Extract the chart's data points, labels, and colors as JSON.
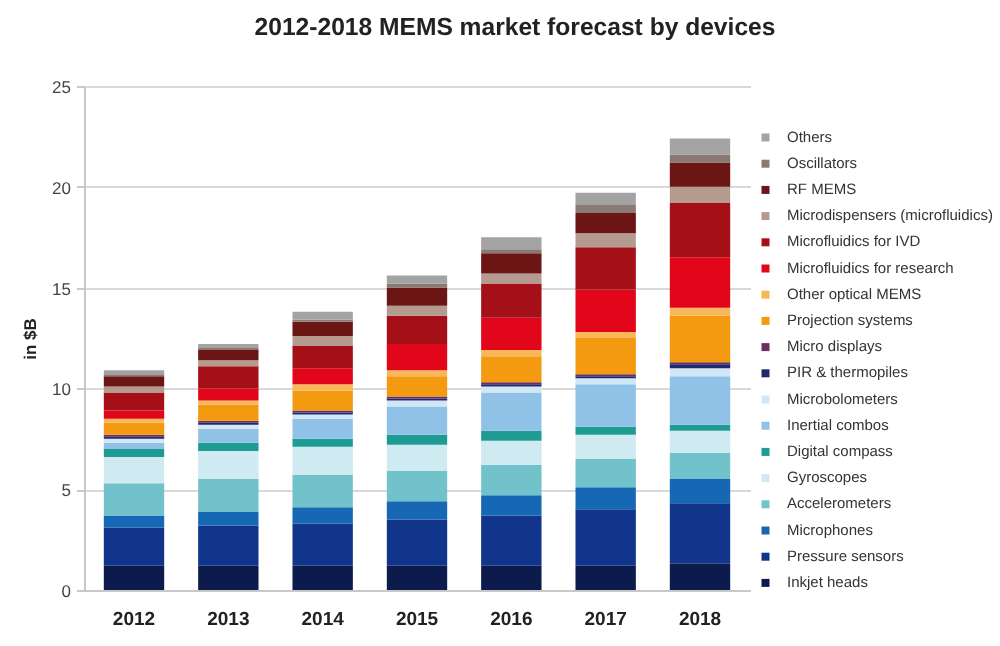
{
  "chart_data": {
    "type": "bar",
    "title": "2012-2018 MEMS market forecast by devices",
    "ylabel": "in $B",
    "categories": [
      "2012",
      "2013",
      "2014",
      "2015",
      "2016",
      "2017",
      "2018"
    ],
    "stacked": true,
    "ylim": [
      0,
      25
    ],
    "yticks": [
      0,
      5,
      10,
      15,
      20,
      25
    ],
    "grid": "y",
    "legend": "right",
    "series": [
      {
        "name": "Inkjet heads",
        "color": "#0d1b4c",
        "values": [
          1.2,
          1.2,
          1.2,
          1.2,
          1.2,
          1.2,
          1.3
        ]
      },
      {
        "name": "Pressure sensors",
        "color": "#10358a",
        "values": [
          1.9,
          2.0,
          2.1,
          2.3,
          2.5,
          2.8,
          3.0
        ]
      },
      {
        "name": "Microphones",
        "color": "#1668b4",
        "values": [
          0.6,
          0.7,
          0.8,
          0.9,
          1.0,
          1.1,
          1.2
        ]
      },
      {
        "name": "Accelerometers",
        "color": "#72c2cc",
        "values": [
          1.6,
          1.6,
          1.6,
          1.5,
          1.5,
          1.4,
          1.3
        ]
      },
      {
        "name": "Gyroscopes",
        "color": "#cfeaf0",
        "values": [
          1.3,
          1.4,
          1.4,
          1.3,
          1.2,
          1.2,
          1.1
        ]
      },
      {
        "name": "Digital compass",
        "color": "#1e9b93",
        "values": [
          0.4,
          0.4,
          0.4,
          0.5,
          0.5,
          0.4,
          0.3
        ]
      },
      {
        "name": "Inertial combos",
        "color": "#90c2e8",
        "values": [
          0.3,
          0.7,
          1.0,
          1.4,
          1.9,
          2.1,
          2.4
        ]
      },
      {
        "name": "Microbolometers",
        "color": "#d3e6f6",
        "values": [
          0.2,
          0.2,
          0.2,
          0.3,
          0.3,
          0.3,
          0.4
        ]
      },
      {
        "name": "PIR & thermopiles",
        "color": "#1c2a6e",
        "values": [
          0.1,
          0.1,
          0.1,
          0.1,
          0.1,
          0.1,
          0.2
        ]
      },
      {
        "name": "Micro displays",
        "color": "#6b2d5f",
        "values": [
          0.1,
          0.1,
          0.1,
          0.1,
          0.1,
          0.1,
          0.1
        ]
      },
      {
        "name": "Projection systems",
        "color": "#f39a10",
        "values": [
          0.6,
          0.8,
          1.0,
          1.0,
          1.3,
          1.8,
          2.3
        ]
      },
      {
        "name": "Other optical MEMS",
        "color": "#f8b85a",
        "values": [
          0.2,
          0.2,
          0.3,
          0.3,
          0.3,
          0.3,
          0.4
        ]
      },
      {
        "name": "Microfluidics for research",
        "color": "#e2061b",
        "values": [
          0.4,
          0.6,
          0.8,
          1.3,
          1.6,
          2.1,
          2.5
        ]
      },
      {
        "name": "Microfluidics for IVD",
        "color": "#a50f17",
        "values": [
          0.9,
          1.1,
          1.1,
          1.4,
          1.7,
          2.1,
          2.7
        ]
      },
      {
        "name": "Microdispensers (microfluidics)",
        "color": "#b59a8f",
        "values": [
          0.3,
          0.3,
          0.5,
          0.5,
          0.5,
          0.7,
          0.8
        ]
      },
      {
        "name": "RF MEMS",
        "color": "#6b1515",
        "values": [
          0.5,
          0.5,
          0.7,
          0.9,
          1.0,
          1.0,
          1.2
        ]
      },
      {
        "name": "Oscillators",
        "color": "#8a7a74",
        "values": [
          0.1,
          0.1,
          0.1,
          0.2,
          0.2,
          0.4,
          0.4
        ]
      },
      {
        "name": "Others",
        "color": "#a3a3a3",
        "values": [
          0.2,
          0.2,
          0.4,
          0.4,
          0.6,
          0.6,
          0.8
        ]
      }
    ]
  }
}
